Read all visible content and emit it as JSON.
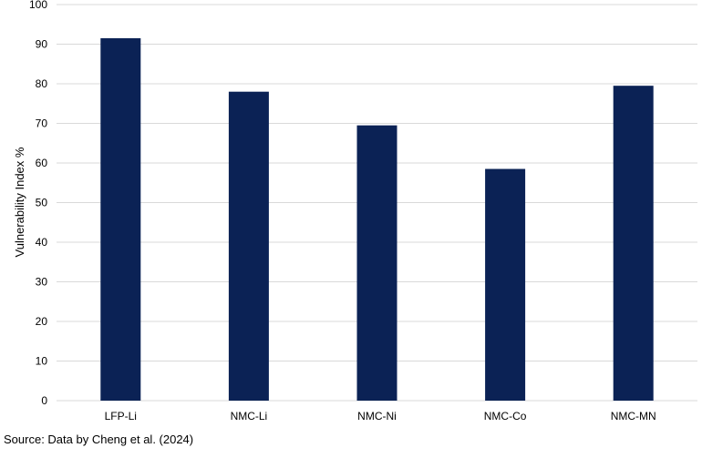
{
  "chart_data": {
    "type": "bar",
    "title": "",
    "xlabel": "",
    "ylabel": "Vulnerability Index %",
    "categories": [
      "LFP-Li",
      "NMC-Li",
      "NMC-Ni",
      "NMC-Co",
      "NMC-MN"
    ],
    "values": [
      91.5,
      78,
      69.5,
      58.5,
      79.5
    ],
    "ylim": [
      0,
      100
    ],
    "yticks": [
      0,
      10,
      20,
      30,
      40,
      50,
      60,
      70,
      80,
      90,
      100
    ],
    "grid": true,
    "legend": "none",
    "bar_color": "#0b2255",
    "grid_color": "#d9d9d9"
  },
  "source": "Source: Data by Cheng et al. (2024)"
}
